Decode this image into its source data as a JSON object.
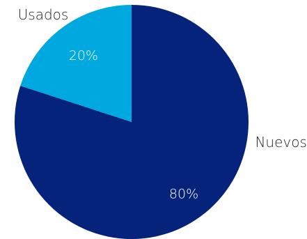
{
  "chart_data": {
    "type": "pie",
    "slices": [
      {
        "label": "Nuevos",
        "value": 80,
        "display": "80%",
        "color": "#05237A"
      },
      {
        "label": "Usados",
        "value": 20,
        "display": "20%",
        "color": "#00A8E0"
      }
    ],
    "start_angle_deg": 0,
    "direction": "clockwise"
  }
}
